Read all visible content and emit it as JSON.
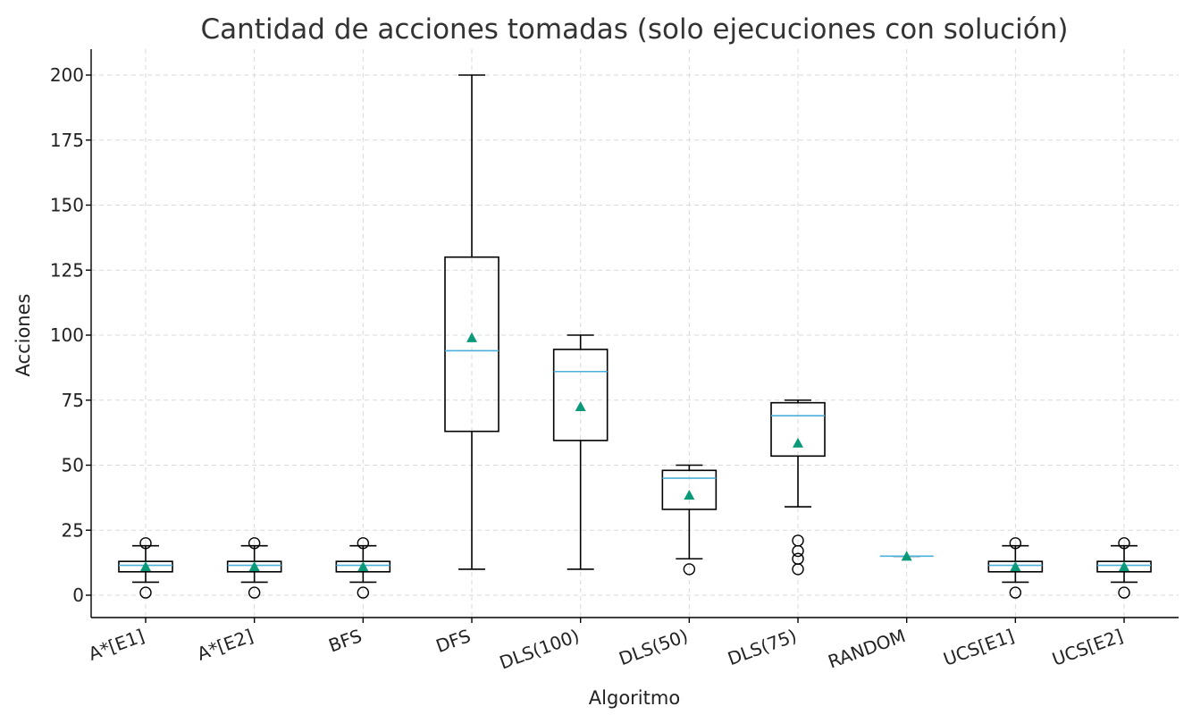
{
  "chart_data": {
    "type": "box",
    "title": "Cantidad de acciones tomadas (solo ejecuciones con solución)",
    "xlabel": "Algoritmo",
    "ylabel": "Acciones",
    "ylim": [
      -8.5,
      210
    ],
    "yticks": [
      0,
      25,
      50,
      75,
      100,
      125,
      150,
      175,
      200
    ],
    "grid": true,
    "colors": {
      "median": "#4ab0d9",
      "mean": "#0b9a79",
      "box": "#000000",
      "grid": "#d9d9d9"
    },
    "categories": [
      "A*[E1]",
      "A*[E2]",
      "BFS",
      "DFS",
      "DLS(100)",
      "DLS(50)",
      "DLS(75)",
      "RANDOM",
      "UCS[E1]",
      "UCS[E2]"
    ],
    "boxes": [
      {
        "label": "A*[E1]",
        "whisker_low": 5,
        "q1": 9,
        "median": 11.5,
        "q3": 13,
        "whisker_high": 19,
        "mean": 11,
        "fliers": [
          1,
          20
        ]
      },
      {
        "label": "A*[E2]",
        "whisker_low": 5,
        "q1": 9,
        "median": 11.5,
        "q3": 13,
        "whisker_high": 19,
        "mean": 11,
        "fliers": [
          1,
          20
        ]
      },
      {
        "label": "BFS",
        "whisker_low": 5,
        "q1": 9,
        "median": 11.5,
        "q3": 13,
        "whisker_high": 19,
        "mean": 11,
        "fliers": [
          1,
          20
        ]
      },
      {
        "label": "DFS",
        "whisker_low": 10,
        "q1": 63,
        "median": 94,
        "q3": 130,
        "whisker_high": 200,
        "mean": 99,
        "fliers": []
      },
      {
        "label": "DLS(100)",
        "whisker_low": 10,
        "q1": 59.5,
        "median": 86,
        "q3": 94.5,
        "whisker_high": 100,
        "mean": 72.5,
        "fliers": []
      },
      {
        "label": "DLS(50)",
        "whisker_low": 14,
        "q1": 33,
        "median": 45,
        "q3": 48,
        "whisker_high": 50,
        "mean": 38.5,
        "fliers": [
          10
        ]
      },
      {
        "label": "DLS(75)",
        "whisker_low": 34,
        "q1": 53.5,
        "median": 69,
        "q3": 74,
        "whisker_high": 75,
        "mean": 58.5,
        "fliers": [
          10,
          14,
          17,
          21
        ]
      },
      {
        "label": "RANDOM",
        "whisker_low": 15,
        "q1": 15,
        "median": 15,
        "q3": 15,
        "whisker_high": 15,
        "mean": 15,
        "fliers": []
      },
      {
        "label": "UCS[E1]",
        "whisker_low": 5,
        "q1": 9,
        "median": 11.5,
        "q3": 13,
        "whisker_high": 19,
        "mean": 11,
        "fliers": [
          1,
          20
        ]
      },
      {
        "label": "UCS[E2]",
        "whisker_low": 5,
        "q1": 9,
        "median": 11.5,
        "q3": 13,
        "whisker_high": 19,
        "mean": 11,
        "fliers": [
          1,
          20
        ]
      }
    ]
  }
}
